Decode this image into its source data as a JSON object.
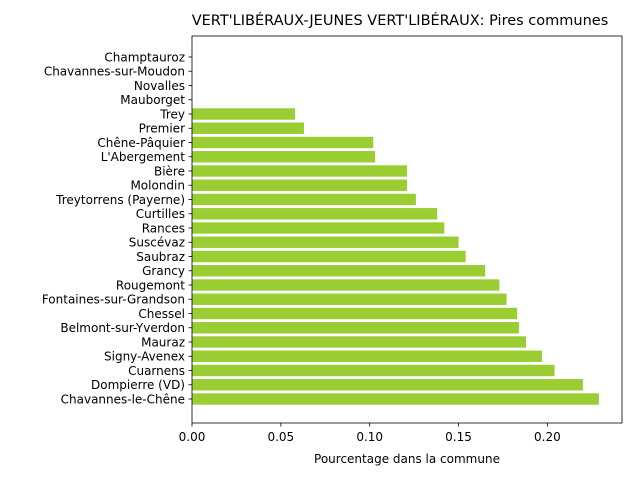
{
  "chart_data": {
    "type": "bar",
    "orientation": "horizontal",
    "title": "VERT'LIBÉRAUX-JEUNES VERT'LIBÉRAUX: Pires communes",
    "xlabel": "Pourcentage dans la commune",
    "ylabel": "",
    "xlim": [
      0,
      0.242
    ],
    "xticks": [
      "0.00",
      "0.05",
      "0.10",
      "0.15",
      "0.20"
    ],
    "bar_color": "#9acd32",
    "grid": false,
    "categories": [
      "Champtauroz",
      "Chavannes-sur-Moudon",
      "Novalles",
      "Mauborget",
      "Trey",
      "Premier",
      "Chêne-Pâquier",
      "L'Abergement",
      "Bière",
      "Molondin",
      "Treytorrens (Payerne)",
      "Curtilles",
      "Rances",
      "Suscévaz",
      "Saubraz",
      "Grancy",
      "Rougemont",
      "Fontaines-sur-Grandson",
      "Chessel",
      "Belmont-sur-Yverdon",
      "Mauraz",
      "Signy-Avenex",
      "Cuarnens",
      "Dompierre (VD)",
      "Chavannes-le-Chêne"
    ],
    "values": [
      0.0,
      0.0,
      0.0,
      0.0,
      0.058,
      0.063,
      0.102,
      0.103,
      0.121,
      0.121,
      0.126,
      0.138,
      0.142,
      0.15,
      0.154,
      0.165,
      0.173,
      0.177,
      0.183,
      0.184,
      0.188,
      0.197,
      0.204,
      0.22,
      0.229
    ]
  }
}
